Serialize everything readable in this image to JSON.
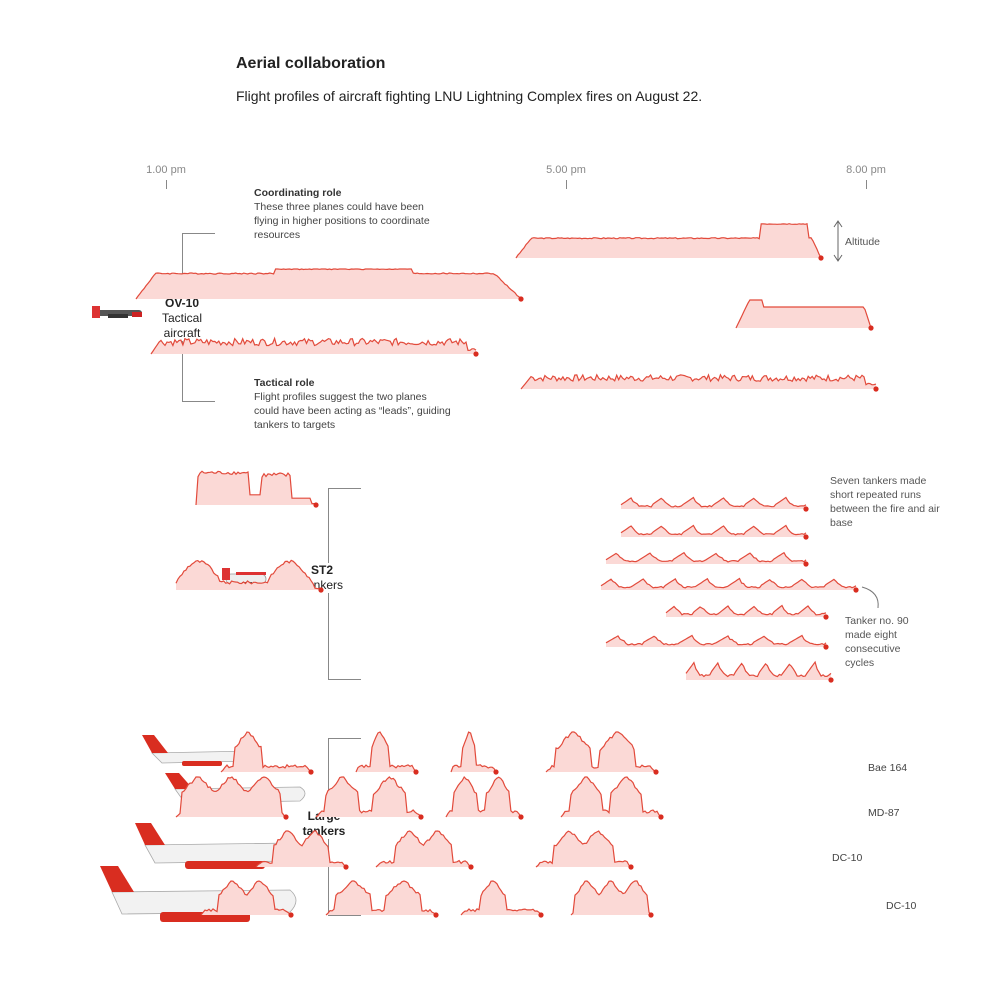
{
  "header": {
    "title": "Aerial collaboration",
    "subtitle": "Flight profiles of aircraft fighting LNU Lightning Complex fires on August 22."
  },
  "time_axis": {
    "ticks": [
      "1.00 pm",
      "5.00 pm",
      "8.00 pm"
    ]
  },
  "colors": {
    "fill": "#fbd9d6",
    "line": "#e24a3b",
    "dot": "#d92d20",
    "bracket": "#888888"
  },
  "groups": {
    "ov10": {
      "name": "OV-10",
      "desc": "Tactical aircraft",
      "icon": "ov10-plane-icon"
    },
    "st2": {
      "name": "ST2",
      "desc": "Tankers",
      "icon": "tanker-plane-icon"
    },
    "large": {
      "name": "Large tankers",
      "icon": "jet-tanker-icon"
    }
  },
  "notes": {
    "coordinating_title": "Coordinating role",
    "coordinating_text": "These three planes could have been flying in higher positions to coordinate resources",
    "tactical_title": "Tactical role",
    "tactical_text": "Flight profiles suggest the two planes could have been acting as “leads”, guiding tankers to targets",
    "altitude": "Altitude",
    "seven_tankers": "Seven tankers made short repeated runs between the fire and air base",
    "tanker90": "Tanker no. 90 made eight consecutive cycles"
  },
  "row_labels": [
    "Bae 164",
    "MD-87",
    "DC-10",
    "DC-10"
  ],
  "chart_data": {
    "type": "area",
    "x_axis": {
      "unit": "time of day",
      "ticks": [
        "1.00 pm",
        "5.00 pm",
        "8.00 pm"
      ]
    },
    "y": "Altitude",
    "series": [
      {
        "group": "ov10",
        "start": 16.5,
        "end": 19.55,
        "shape": "cruise-high"
      },
      {
        "group": "ov10",
        "start": 12.7,
        "end": 16.55,
        "shape": "cruise-mid"
      },
      {
        "group": "ov10",
        "start": 18.7,
        "end": 20.05,
        "shape": "cruise-short"
      },
      {
        "group": "ov10",
        "start": 12.85,
        "end": 16.1,
        "shape": "tactical"
      },
      {
        "group": "ov10",
        "start": 16.55,
        "end": 20.1,
        "shape": "tactical"
      },
      {
        "group": "st2",
        "start": 13.3,
        "end": 14.5,
        "shape": "two-runs"
      },
      {
        "group": "st2",
        "start": 13.1,
        "end": 14.55,
        "shape": "three-runs"
      },
      {
        "group": "st2",
        "start": 17.55,
        "end": 19.4,
        "shape": "short-runs"
      },
      {
        "group": "st2",
        "start": 17.55,
        "end": 19.4,
        "shape": "short-runs"
      },
      {
        "group": "st2",
        "start": 17.4,
        "end": 19.4,
        "shape": "short-runs"
      },
      {
        "group": "st2",
        "start": 17.35,
        "end": 19.9,
        "shape": "eight-cycles"
      },
      {
        "group": "st2",
        "start": 18.0,
        "end": 19.6,
        "shape": "short-runs"
      },
      {
        "group": "st2",
        "start": 17.4,
        "end": 19.6,
        "shape": "short-runs"
      },
      {
        "group": "st2",
        "start": 18.2,
        "end": 19.65,
        "shape": "short-runs"
      },
      {
        "group": "large",
        "row": 0,
        "start": 13.55,
        "end": 14.45,
        "shape": "large-a"
      },
      {
        "group": "large",
        "row": 0,
        "start": 14.9,
        "end": 15.5,
        "shape": "large-b"
      },
      {
        "group": "large",
        "row": 0,
        "start": 15.85,
        "end": 16.3,
        "shape": "large-b"
      },
      {
        "group": "large",
        "row": 0,
        "start": 16.8,
        "end": 17.9,
        "shape": "large-c"
      },
      {
        "group": "large",
        "row": 1,
        "start": 13.1,
        "end": 14.2,
        "shape": "large-d"
      },
      {
        "group": "large",
        "row": 1,
        "start": 14.5,
        "end": 15.55,
        "shape": "large-e"
      },
      {
        "group": "large",
        "row": 1,
        "start": 15.8,
        "end": 16.55,
        "shape": "large-e"
      },
      {
        "group": "large",
        "row": 1,
        "start": 16.95,
        "end": 17.95,
        "shape": "large-c"
      },
      {
        "group": "large",
        "row": 2,
        "start": 13.9,
        "end": 14.8,
        "shape": "large-f"
      },
      {
        "group": "large",
        "row": 2,
        "start": 15.1,
        "end": 16.05,
        "shape": "large-f"
      },
      {
        "group": "large",
        "row": 2,
        "start": 16.7,
        "end": 17.65,
        "shape": "large-f"
      },
      {
        "group": "large",
        "row": 3,
        "start": 13.35,
        "end": 14.25,
        "shape": "large-f"
      },
      {
        "group": "large",
        "row": 3,
        "start": 14.6,
        "end": 15.7,
        "shape": "large-e"
      },
      {
        "group": "large",
        "row": 3,
        "start": 15.95,
        "end": 16.75,
        "shape": "large-b"
      },
      {
        "group": "large",
        "row": 3,
        "start": 17.05,
        "end": 17.85,
        "shape": "large-d"
      }
    ]
  }
}
